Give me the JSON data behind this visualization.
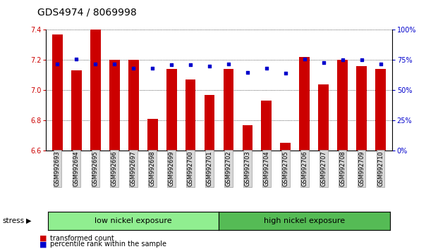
{
  "title": "GDS4974 / 8069998",
  "samples": [
    "GSM992693",
    "GSM992694",
    "GSM992695",
    "GSM992696",
    "GSM992697",
    "GSM992698",
    "GSM992699",
    "GSM992700",
    "GSM992701",
    "GSM992702",
    "GSM992703",
    "GSM992704",
    "GSM992705",
    "GSM992706",
    "GSM992707",
    "GSM992708",
    "GSM992709",
    "GSM992710"
  ],
  "red_values": [
    7.37,
    7.13,
    7.4,
    7.2,
    7.2,
    6.81,
    7.14,
    7.07,
    6.97,
    7.14,
    6.77,
    6.93,
    6.65,
    7.22,
    7.04,
    7.2,
    7.16,
    7.14
  ],
  "blue_values": [
    72,
    76,
    72,
    72,
    68,
    68,
    71,
    71,
    70,
    72,
    65,
    68,
    64,
    76,
    73,
    75,
    75,
    72
  ],
  "ymin": 6.6,
  "ymax": 7.4,
  "yticks": [
    6.6,
    6.8,
    7.0,
    7.2,
    7.4
  ],
  "right_yticks": [
    0,
    25,
    50,
    75,
    100
  ],
  "right_yticklabels": [
    "0%",
    "25%",
    "50%",
    "75%",
    "100%"
  ],
  "bar_color": "#cc0000",
  "dot_color": "#0000cc",
  "bar_baseline": 6.6,
  "group1_label": "low nickel exposure",
  "group2_label": "high nickel exposure",
  "group1_count": 9,
  "group2_count": 9,
  "legend_red": "transformed count",
  "legend_blue": "percentile rank within the sample",
  "stress_label": "stress",
  "group1_color": "#90ee90",
  "group2_color": "#55bb55",
  "tick_label_color_left": "#cc0000",
  "tick_label_color_right": "#0000cc",
  "title_fontsize": 10,
  "axis_fontsize": 7,
  "label_fontsize": 8
}
